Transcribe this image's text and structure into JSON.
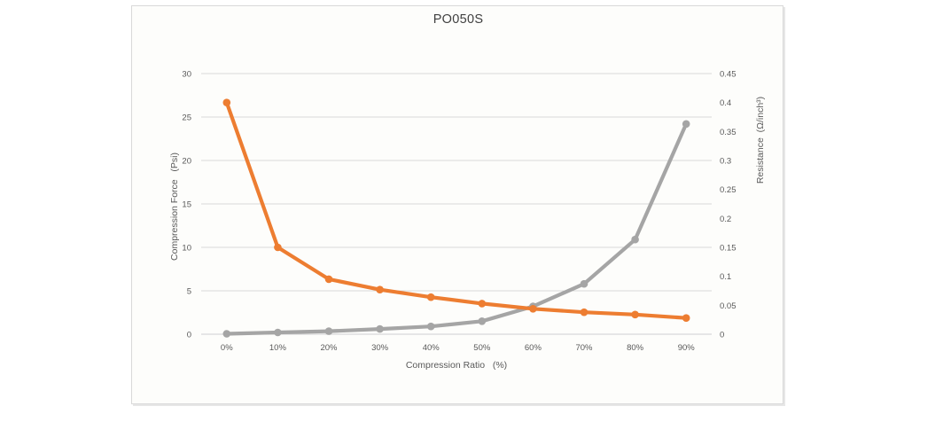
{
  "chart_data": {
    "type": "line",
    "title": "PO050S",
    "xlabel": "Compression Ratio   (%)",
    "ylabel_left": "Compression Force   (Psi)",
    "ylabel_right": "Resistance  (Ω/inch³)",
    "categories": [
      "0%",
      "10%",
      "20%",
      "30%",
      "40%",
      "50%",
      "60%",
      "70%",
      "80%",
      "90%"
    ],
    "axes": {
      "left": {
        "min": 0,
        "max": 30,
        "step": 5,
        "ticks": [
          "0",
          "5",
          "10",
          "15",
          "20",
          "25",
          "30"
        ]
      },
      "right": {
        "min": 0,
        "max": 0.45,
        "step": 0.05,
        "ticks": [
          "0",
          "0.05",
          "0.1",
          "0.15",
          "0.2",
          "0.25",
          "0.3",
          "0.35",
          "0.4",
          "0.45"
        ]
      }
    },
    "grid": "horizontal",
    "legend": "none",
    "series": [
      {
        "id": "compression-force",
        "name": "Compression Force (Psi)",
        "axis": "left",
        "color": "#a5a5a5",
        "values": [
          0.05,
          0.2,
          0.35,
          0.6,
          0.9,
          1.5,
          3.2,
          5.8,
          10.9,
          24.2
        ]
      },
      {
        "id": "resistance",
        "name": "Resistance (Ω/inch³)",
        "axis": "right",
        "color": "#ed7d31",
        "values": [
          0.4,
          0.15,
          0.095,
          0.077,
          0.064,
          0.053,
          0.044,
          0.038,
          0.034,
          0.028
        ]
      }
    ],
    "colors": {
      "grid": "#d9d9d9",
      "axis_line": "#d0d0d0",
      "tick_text": "#595959",
      "title_text": "#404040"
    }
  }
}
